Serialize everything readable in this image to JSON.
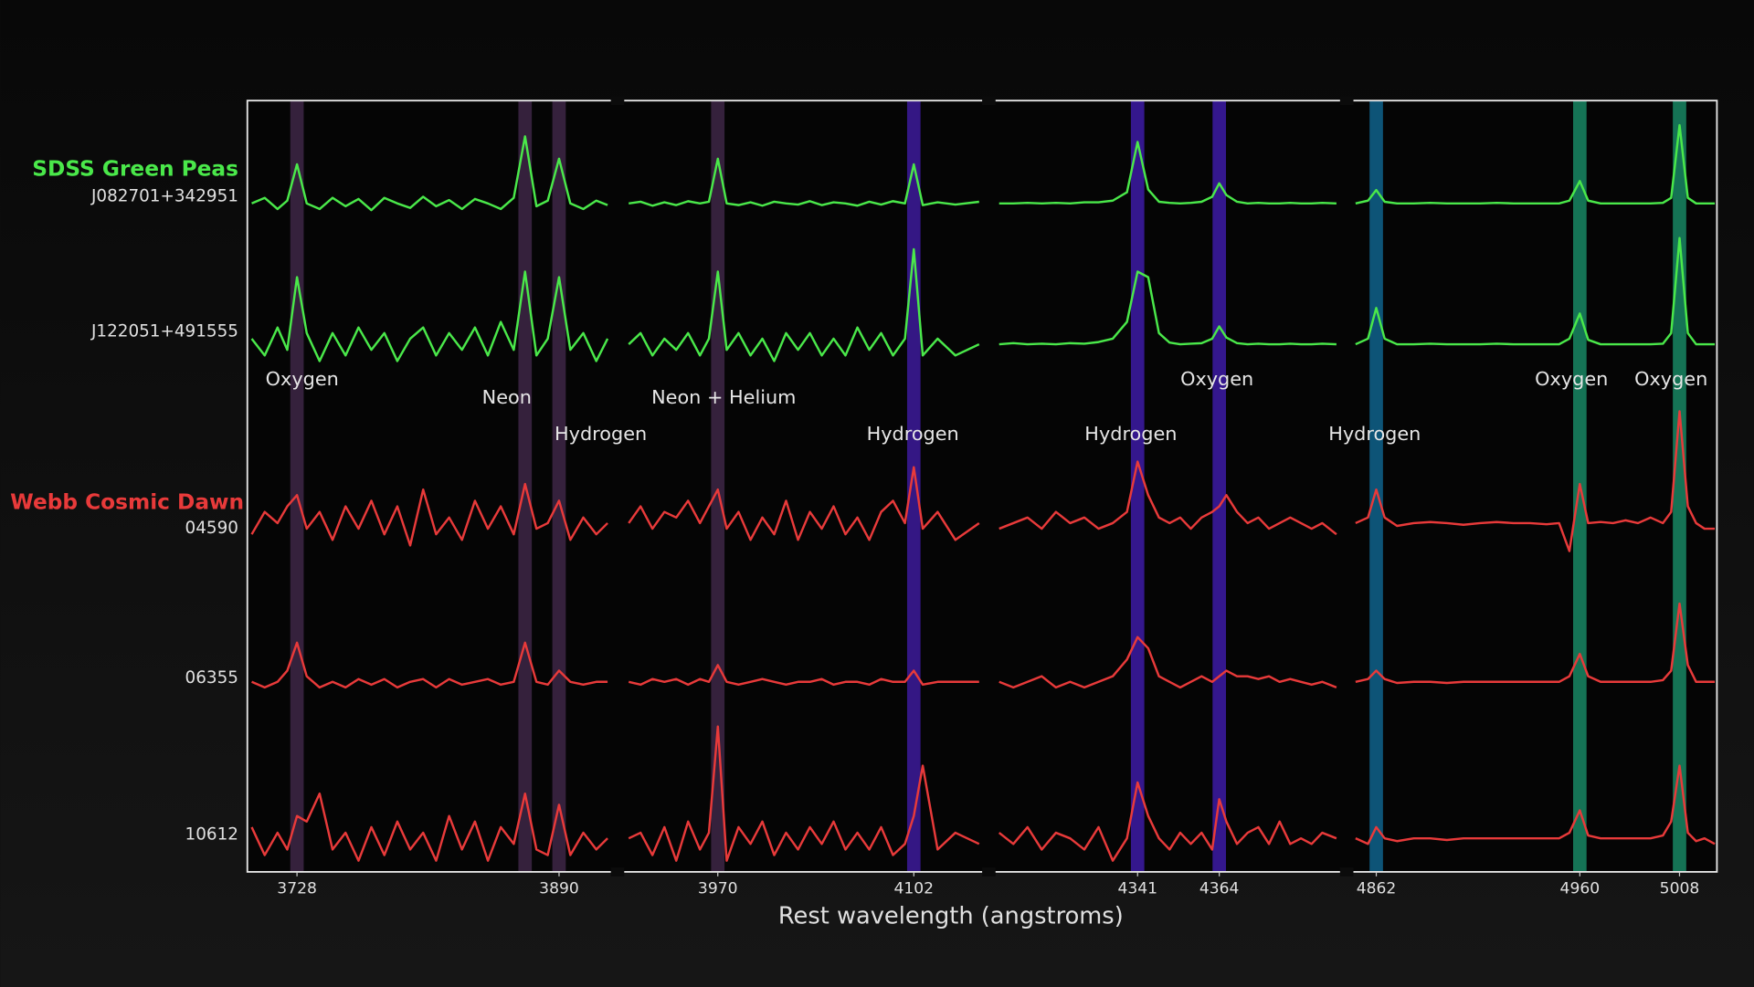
{
  "chart_data": {
    "type": "line",
    "xlabel": "Rest wavelength (angstroms)",
    "panels": [
      {
        "xlim": [
          3698,
          3922
        ],
        "xticks": [
          3728,
          3890
        ],
        "x": [
          3700,
          3708,
          3716,
          3722,
          3728,
          3734,
          3742,
          3750,
          3758,
          3766,
          3774,
          3782,
          3790,
          3798,
          3806,
          3814,
          3822,
          3830,
          3838,
          3846,
          3854,
          3862,
          3869,
          3876,
          3883,
          3890,
          3897,
          3905,
          3913,
          3920
        ]
      },
      {
        "xlim": [
          3907,
          4148
        ],
        "xticks": [
          3970,
          4102
        ],
        "x": [
          3910,
          3918,
          3926,
          3934,
          3942,
          3950,
          3958,
          3964,
          3970,
          3976,
          3984,
          3992,
          4000,
          4008,
          4016,
          4024,
          4032,
          4040,
          4048,
          4056,
          4064,
          4072,
          4080,
          4088,
          4096,
          4102,
          4108,
          4118,
          4130,
          4146
        ]
      },
      {
        "xlim": [
          4301,
          4398
        ],
        "xticks": [
          4341,
          4364
        ],
        "x": [
          4302,
          4306,
          4310,
          4314,
          4318,
          4322,
          4326,
          4330,
          4334,
          4338,
          4341,
          4344,
          4347,
          4350,
          4353,
          4356,
          4359,
          4362,
          4364,
          4366,
          4369,
          4372,
          4375,
          4378,
          4381,
          4384,
          4387,
          4390,
          4393,
          4397
        ]
      },
      {
        "xlim": [
          4851,
          5026
        ],
        "xticks": [
          4862,
          4960,
          5008
        ],
        "x": [
          4852,
          4858,
          4862,
          4866,
          4872,
          4880,
          4888,
          4896,
          4904,
          4912,
          4920,
          4928,
          4936,
          4944,
          4950,
          4955,
          4960,
          4964,
          4970,
          4976,
          4982,
          4988,
          4994,
          5000,
          5004,
          5008,
          5012,
          5016,
          5020,
          5025
        ]
      }
    ],
    "groups": [
      {
        "name": "SDSS Green Peas",
        "color": "#4ae84a",
        "series": [
          {
            "name": "J082701+342951",
            "values": [
              [
                0,
                1,
                -1,
                0.5,
                7,
                0,
                -1,
                1,
                -0.5,
                0.8,
                -1.2,
                1,
                0,
                -0.8,
                1.2,
                -0.5,
                0.6,
                -1,
                0.8,
                0,
                -1,
                1,
                12,
                -0.5,
                0.5,
                8,
                0,
                -1,
                0.5,
                -0.3
              ],
              [
                0,
                0.3,
                -0.4,
                0.2,
                -0.3,
                0.4,
                0,
                0.3,
                8,
                0,
                -0.3,
                0.2,
                -0.4,
                0.3,
                0,
                -0.2,
                0.4,
                -0.3,
                0.2,
                0,
                -0.4,
                0.3,
                -0.2,
                0.4,
                0,
                7,
                -0.3,
                0.2,
                -0.2,
                0.3
              ],
              [
                0,
                0,
                0.1,
                0,
                0.1,
                0,
                0.2,
                0.2,
                0.5,
                2,
                11,
                2.5,
                0.3,
                0.1,
                0,
                0.1,
                0.3,
                1.2,
                3.6,
                1.5,
                0.3,
                0,
                0.1,
                0,
                0,
                0.1,
                0,
                0,
                0.1,
                0
              ],
              [
                0,
                0.5,
                2.4,
                0.3,
                0,
                0,
                0.1,
                0,
                0,
                0,
                0.1,
                0,
                0,
                0,
                0,
                0.5,
                4,
                0.5,
                0,
                0,
                0,
                0,
                0,
                0.1,
                1,
                14,
                1,
                0,
                0,
                0
              ]
            ]
          },
          {
            "name": "J122051+491555",
            "values": [
              [
                1,
                -2,
                3,
                -1,
                12,
                2,
                -3,
                2,
                -2,
                3,
                -1,
                2,
                -3,
                1,
                3,
                -2,
                2,
                -1,
                3,
                -2,
                4,
                -1,
                13,
                -2,
                1,
                12,
                -1,
                2,
                -3,
                1
              ],
              [
                0,
                2,
                -2,
                1,
                -1,
                2,
                -2,
                1,
                13,
                -1,
                2,
                -2,
                1,
                -3,
                2,
                -1,
                2,
                -2,
                1,
                -2,
                3,
                -1,
                2,
                -2,
                1,
                17,
                -2,
                1,
                -2,
                0
              ],
              [
                0,
                0.2,
                0,
                0.1,
                0,
                0.2,
                0.1,
                0.4,
                1,
                4,
                13,
                12,
                2,
                0.3,
                0,
                0.1,
                0.2,
                1,
                3.2,
                1.2,
                0.2,
                0,
                0.1,
                0,
                0,
                0.1,
                0,
                0,
                0.1,
                0
              ],
              [
                0,
                1,
                6.5,
                1,
                0,
                0,
                0.1,
                0,
                0,
                0,
                0.1,
                0,
                0,
                0,
                0,
                1,
                5.5,
                0.8,
                0,
                0,
                0,
                0,
                0,
                0.1,
                2,
                19,
                2,
                0,
                0,
                0
              ]
            ]
          }
        ]
      },
      {
        "name": "Webb Cosmic Dawn",
        "color": "#e83a3a",
        "series": [
          {
            "name": "04590",
            "values": [
              [
                -2,
                2,
                0,
                3,
                5,
                -1,
                2,
                -3,
                3,
                -1,
                4,
                -2,
                3,
                -4,
                6,
                -2,
                1,
                -3,
                4,
                -1,
                3,
                -2,
                7,
                -1,
                0,
                4,
                -3,
                1,
                -2,
                0
              ],
              [
                0,
                3,
                -1,
                2,
                1,
                4,
                0,
                3,
                6,
                -1,
                2,
                -3,
                1,
                -2,
                4,
                -3,
                2,
                -1,
                3,
                -2,
                1,
                -3,
                2,
                4,
                0,
                10,
                -1,
                2,
                -3,
                0
              ],
              [
                -1,
                0,
                1,
                -1,
                2,
                0,
                1,
                -1,
                0,
                2,
                11,
                5,
                1,
                0,
                1,
                -1,
                1,
                2,
                3,
                5,
                2,
                0,
                1,
                -1,
                0,
                1,
                0,
                -1,
                0,
                -2
              ],
              [
                0,
                1,
                6,
                1,
                -0.5,
                0,
                0.2,
                0,
                -0.3,
                0,
                0.2,
                0,
                0,
                -0.2,
                0,
                -5,
                7,
                0,
                0.2,
                0,
                0.5,
                0,
                1,
                0,
                2,
                20,
                3,
                0,
                -1,
                -1
              ]
            ]
          },
          {
            "name": "06355",
            "values": [
              [
                0,
                -1,
                0,
                2,
                7,
                1,
                -1,
                0,
                -1,
                0.5,
                -0.5,
                0.5,
                -1,
                0,
                0.5,
                -1,
                0.5,
                -0.5,
                0,
                0.5,
                -0.5,
                0,
                7,
                0,
                -0.5,
                2,
                0,
                -0.5,
                0,
                0
              ],
              [
                0,
                -0.5,
                0.5,
                0,
                0.5,
                -0.5,
                0.5,
                0,
                3,
                0,
                -0.5,
                0,
                0.5,
                0,
                -0.5,
                0,
                0,
                0.5,
                -0.5,
                0,
                0,
                -0.5,
                0.5,
                0,
                0,
                2,
                -0.5,
                0,
                0,
                0
              ],
              [
                0,
                -1,
                0,
                1,
                -1,
                0,
                -1,
                0,
                1,
                4,
                8,
                6,
                1,
                0,
                -1,
                0,
                1,
                0,
                1,
                2,
                1,
                1,
                0.5,
                1,
                0,
                0.5,
                0,
                -0.5,
                0,
                -1
              ],
              [
                0,
                0.5,
                2,
                0.5,
                -0.2,
                0,
                0,
                -0.2,
                0,
                0,
                0,
                0,
                0,
                0,
                0,
                1,
                5,
                1,
                0,
                0,
                0,
                0,
                0,
                0.3,
                2,
                14,
                3,
                0,
                0,
                0
              ]
            ]
          },
          {
            "name": "10612",
            "values": [
              [
                2,
                -3,
                1,
                -2,
                4,
                3,
                8,
                -2,
                1,
                -4,
                2,
                -3,
                3,
                -2,
                1,
                -4,
                4,
                -2,
                3,
                -4,
                2,
                -1,
                8,
                -2,
                -3,
                6,
                -3,
                1,
                -2,
                0
              ],
              [
                0,
                1,
                -3,
                2,
                -4,
                3,
                -2,
                1,
                20,
                -4,
                2,
                -1,
                3,
                -3,
                1,
                -2,
                2,
                -1,
                3,
                -2,
                1,
                -2,
                2,
                -3,
                -1,
                4,
                13,
                -2,
                1,
                -1
              ],
              [
                1,
                -1,
                2,
                -2,
                1,
                0,
                -2,
                2,
                -4,
                0,
                10,
                4,
                0,
                -2,
                1,
                -1,
                1,
                -2,
                7,
                3,
                -1,
                1,
                2,
                -1,
                3,
                -1,
                0,
                -1,
                1,
                0
              ],
              [
                0,
                -1,
                2,
                0,
                -0.5,
                0,
                0,
                -0.3,
                0,
                0,
                0,
                0,
                0,
                0,
                0,
                1,
                5,
                0.5,
                0,
                0,
                0,
                0,
                0,
                0.5,
                3,
                13,
                1,
                -0.5,
                0,
                -1
              ]
            ]
          }
        ]
      }
    ],
    "lines": [
      {
        "wavelength": 3728,
        "label": "Oxygen",
        "color": "#3b2542"
      },
      {
        "wavelength": 3869,
        "label": "Neon",
        "color": "#3b2542"
      },
      {
        "wavelength": 3890,
        "label": "Hydrogen",
        "color": "#3b2542"
      },
      {
        "wavelength": 3970,
        "label": "Neon + Helium",
        "color": "#3b2542"
      },
      {
        "wavelength": 4102,
        "label": "Hydrogen",
        "color": "#3a1a92"
      },
      {
        "wavelength": 4341,
        "label": "Hydrogen",
        "color": "#3a1a9c"
      },
      {
        "wavelength": 4364,
        "label": "Oxygen",
        "color": "#3a1a9c"
      },
      {
        "wavelength": 4862,
        "label": "Hydrogen",
        "color": "#0e5d84"
      },
      {
        "wavelength": 4960,
        "label": "Oxygen",
        "color": "#17805e"
      },
      {
        "wavelength": 5008,
        "label": "Oxygen",
        "color": "#17805e"
      }
    ]
  }
}
